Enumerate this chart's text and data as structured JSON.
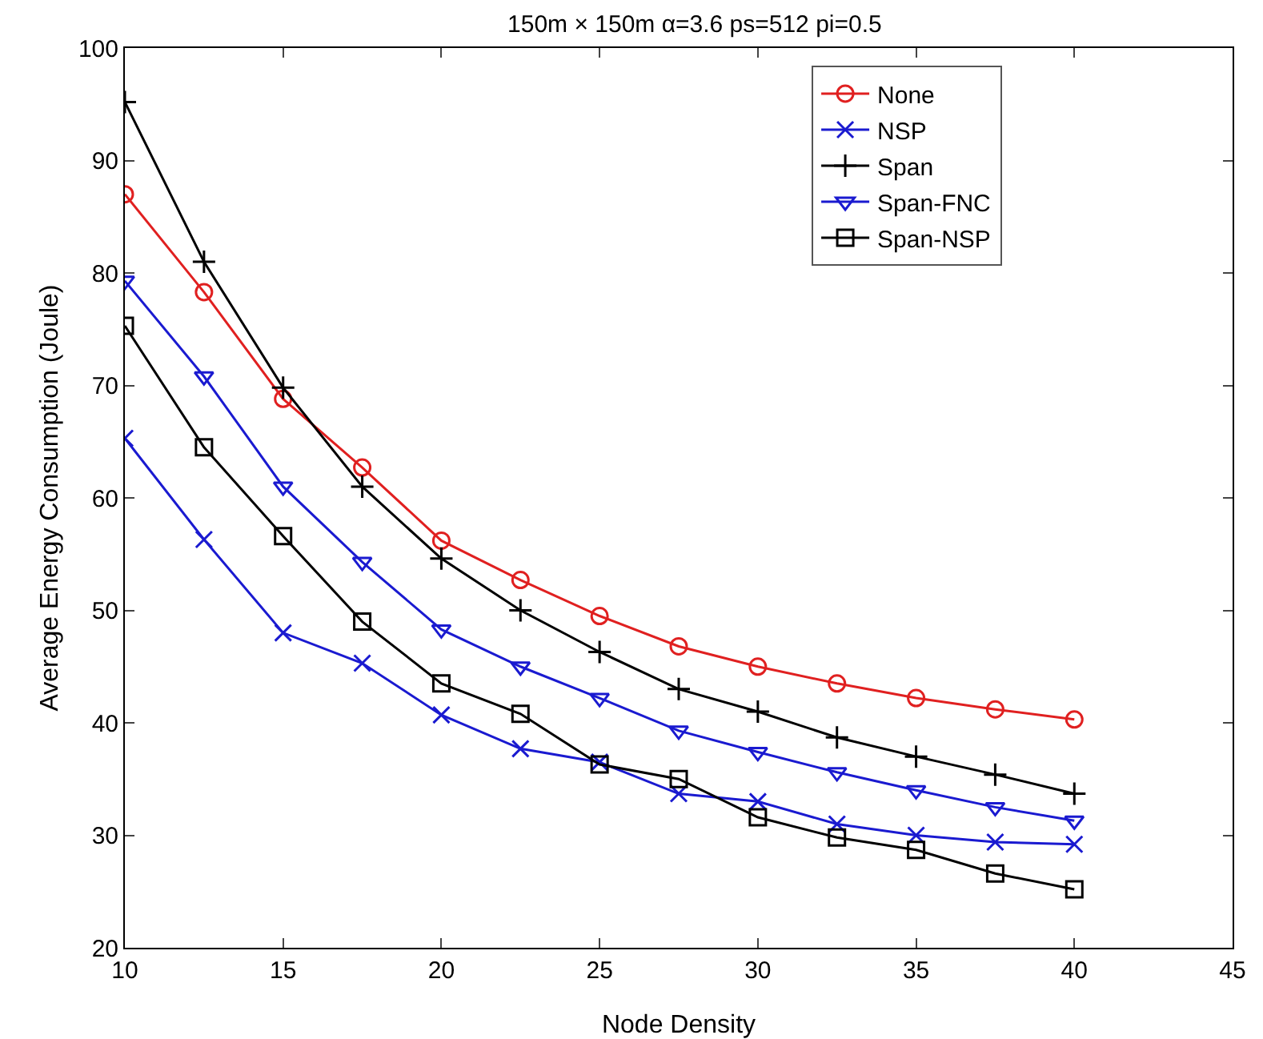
{
  "chart_data": {
    "type": "line",
    "title": "150m × 150m α=3.6 ps=512 pi=0.5",
    "xlabel": "Node Density",
    "ylabel": "Average Energy Consumption (Joule)",
    "x": [
      10,
      12.5,
      15,
      17.5,
      20,
      22.5,
      25,
      27.5,
      30,
      32.5,
      35,
      37.5,
      40
    ],
    "series": [
      {
        "name": "None",
        "color": "#e02020",
        "marker": "circle",
        "values": [
          87,
          78.3,
          68.8,
          62.7,
          56.2,
          52.7,
          49.5,
          46.8,
          45,
          43.5,
          42.2,
          41.2,
          40.3
        ]
      },
      {
        "name": "NSP",
        "color": "#1a1ad0",
        "marker": "x",
        "values": [
          65.3,
          56.3,
          48,
          45.3,
          40.7,
          37.7,
          36.5,
          33.7,
          33,
          31,
          30,
          29.4,
          29.2
        ]
      },
      {
        "name": "Span",
        "color": "#000000",
        "marker": "cross",
        "values": [
          95.2,
          81,
          69.8,
          61,
          54.6,
          50,
          46.3,
          43,
          41,
          38.7,
          37,
          35.4,
          33.7
        ]
      },
      {
        "name": "Span-FNC",
        "color": "#1a1ad0",
        "marker": "triangle",
        "values": [
          79.3,
          70.8,
          61,
          54.3,
          48.3,
          45,
          42.2,
          39.3,
          37.4,
          35.6,
          34,
          32.5,
          31.3
        ]
      },
      {
        "name": "Span-NSP",
        "color": "#000000",
        "marker": "square",
        "values": [
          75.3,
          64.5,
          56.6,
          49,
          43.5,
          40.8,
          36.3,
          35,
          31.6,
          29.8,
          28.7,
          26.6,
          25.2
        ]
      }
    ],
    "xlim": [
      10,
      45
    ],
    "xticks": [
      10,
      15,
      20,
      25,
      30,
      35,
      40,
      45
    ],
    "ylim": [
      20,
      100
    ],
    "yticks": [
      20,
      30,
      40,
      50,
      60,
      70,
      80,
      90,
      100
    ],
    "grid": false,
    "legend": "top right",
    "line_style": "solid"
  }
}
